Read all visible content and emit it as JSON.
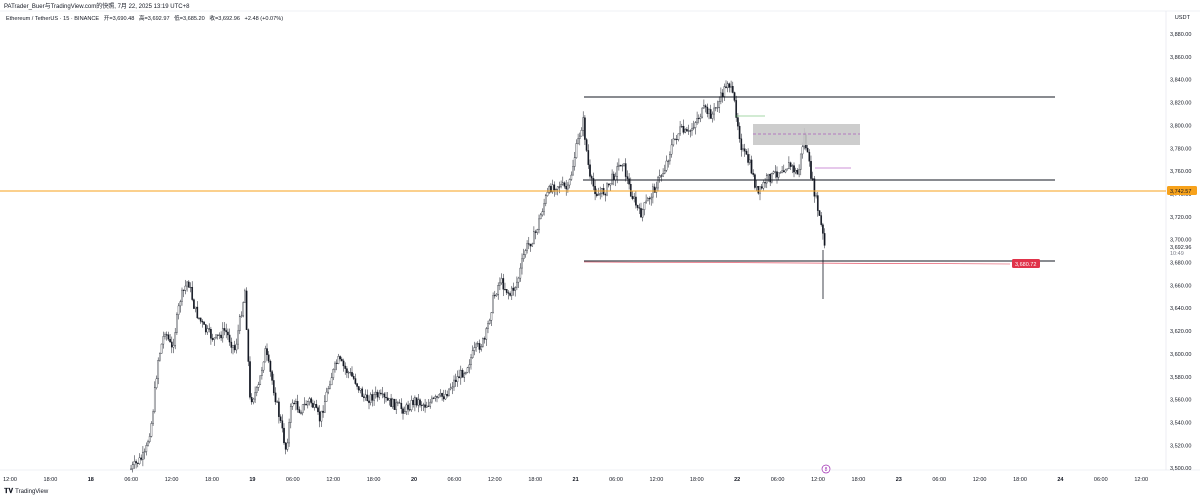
{
  "header": {
    "credit": "PATrader_Buer与TradingView.com的快照, 7月 22, 2025 13:19 UTC+8"
  },
  "legend": {
    "symbol": "Ethereum / TetherUS · 15 · BINANCE",
    "open_label": "开=3,690.48",
    "high_label": "高=3,692.97",
    "low_label": "低=3,685.20",
    "close_label": "收=3,692.96",
    "change": "+2.48 (+0.07%)"
  },
  "currency": "USDT",
  "price_axis": {
    "labels": [
      "3,880.00",
      "3,860.00",
      "3,840.00",
      "3,820.00",
      "3,800.00",
      "3,780.00",
      "3,760.00",
      "3,740.00",
      "3,720.00",
      "3,700.00",
      "3,680.00",
      "3,660.00",
      "3,640.00",
      "3,620.00",
      "3,600.00",
      "3,580.00",
      "3,560.00",
      "3,540.00",
      "3,520.00",
      "3,500.00"
    ],
    "current_price": "3,692.96",
    "countdown": "10:49",
    "orange_level": "3,742.57",
    "red_level": "3,680.72"
  },
  "time_axis": {
    "labels": [
      "12:00",
      "18:00",
      "18",
      "06:00",
      "12:00",
      "18:00",
      "19",
      "06:00",
      "12:00",
      "18:00",
      "20",
      "06:00",
      "12:00",
      "18:00",
      "21",
      "06:00",
      "12:00",
      "18:00",
      "22",
      "06:00",
      "12:00",
      "18:00",
      "23",
      "06:00",
      "12:00",
      "18:00",
      "24",
      "06:00",
      "12:00"
    ]
  },
  "event_marker": "8",
  "brand": "TradingView",
  "colors": {
    "up": "#ffffff",
    "down": "#131722",
    "orange_line": "#f7a21b",
    "red_line": "#e0334a",
    "zone": "#c8c8c8",
    "level_line": "#131722"
  }
}
